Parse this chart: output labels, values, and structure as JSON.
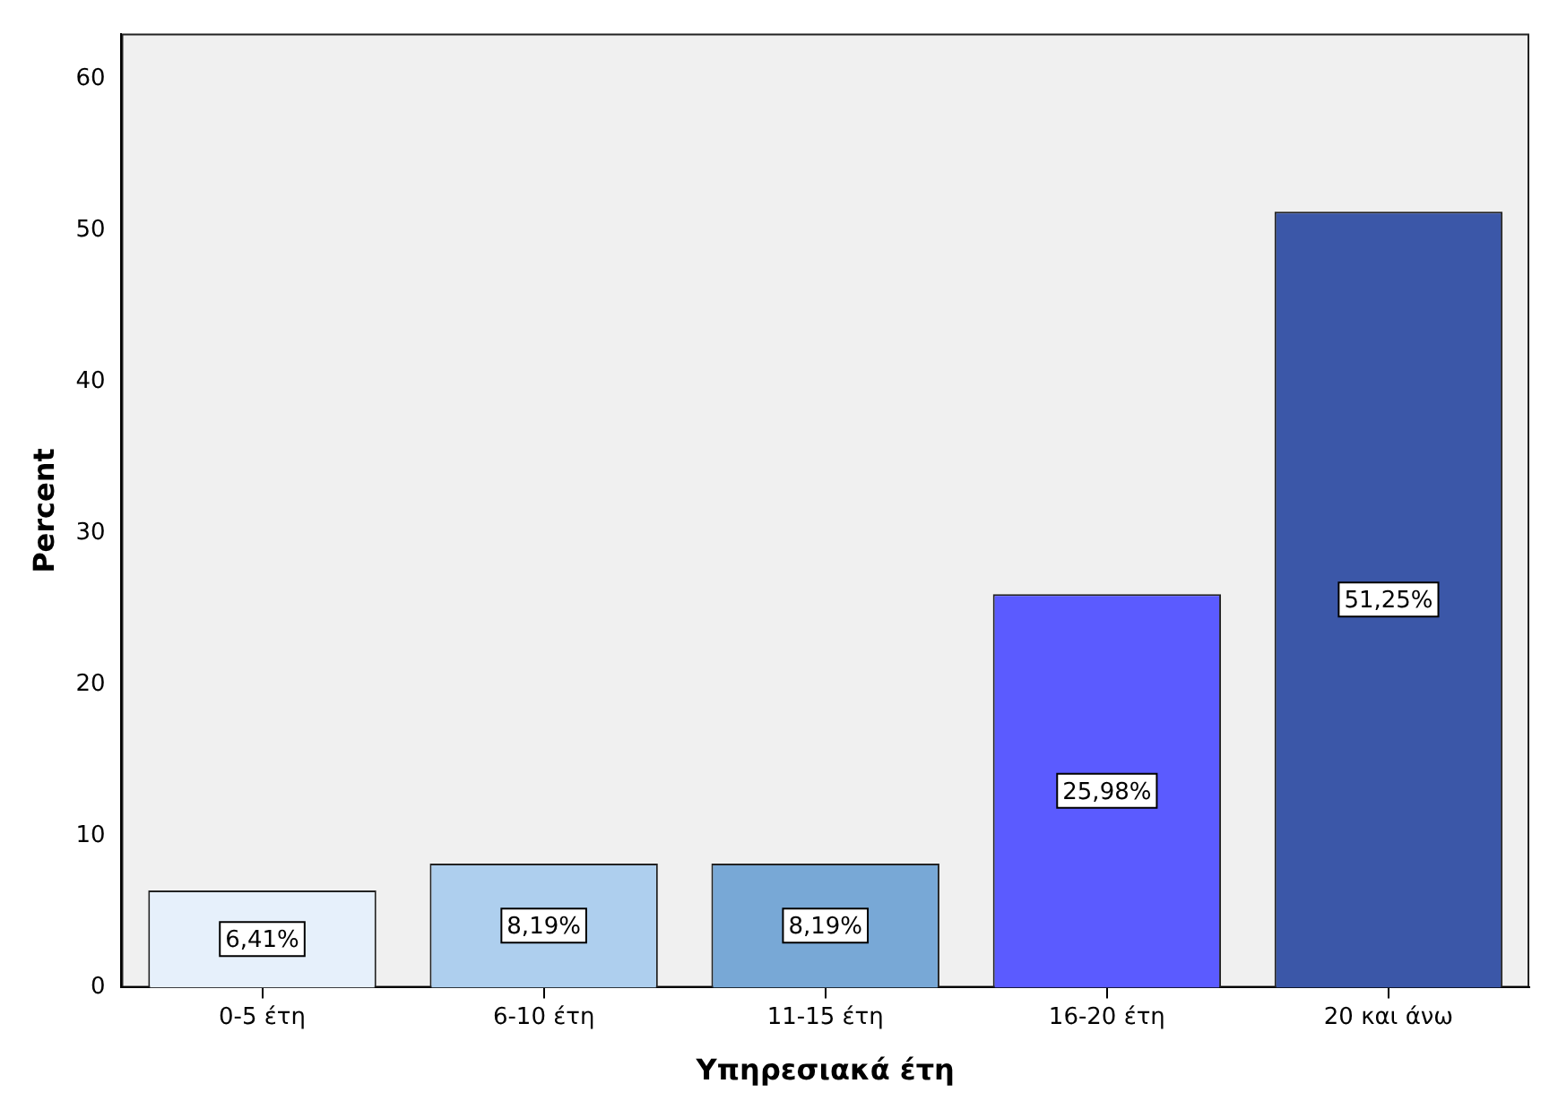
{
  "chart_data": {
    "type": "bar",
    "xlabel": "Υπηρεσιακά έτη",
    "ylabel": "Percent",
    "categories": [
      "0-5 έτη",
      "6-10 έτη",
      "11-15 έτη",
      "16-20 έτη",
      "20 και άνω"
    ],
    "values": [
      6.41,
      8.19,
      8.19,
      25.98,
      51.25
    ],
    "colors": [
      "#e6f0fb",
      "#aecfee",
      "#78a8d6",
      "#5b5bff",
      "#3b57a8"
    ],
    "value_labels": [
      "6,41%",
      "8,19%",
      "8,19%",
      "25,98%",
      "51,25%"
    ],
    "ylim": [
      0,
      63
    ],
    "yticks": [
      0,
      10,
      20,
      30,
      40,
      50,
      60
    ],
    "grid": false,
    "legend": false
  }
}
